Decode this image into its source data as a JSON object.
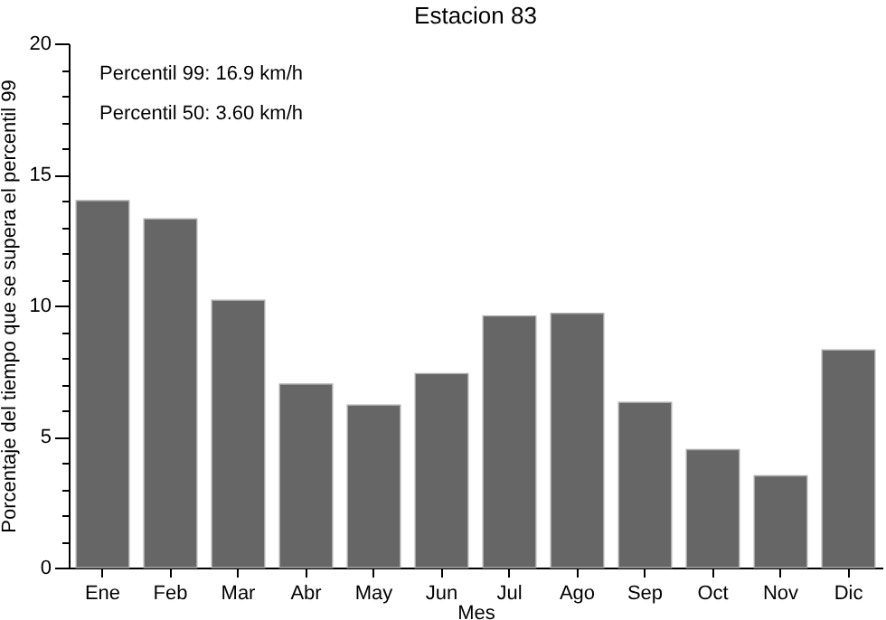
{
  "chart_data": {
    "type": "bar",
    "title": "Estacion 83",
    "xlabel": "Mes",
    "ylabel": "Porcentaje del tiempo que se supera el percentil 99",
    "categories": [
      "Ene",
      "Feb",
      "Mar",
      "Abr",
      "May",
      "Jun",
      "Jul",
      "Ago",
      "Sep",
      "Oct",
      "Nov",
      "Dic"
    ],
    "values": [
      14.0,
      13.3,
      10.2,
      7.0,
      6.2,
      7.4,
      9.6,
      9.7,
      6.3,
      4.5,
      3.5,
      8.3
    ],
    "color": "#666666",
    "ylim": [
      0,
      20
    ],
    "yticks": [
      0,
      {
        "value": 1,
        "label": null
      },
      {
        "value": 2,
        "label": null
      },
      {
        "value": 3,
        "label": null
      },
      {
        "value": 4,
        "label": null
      },
      5,
      {
        "value": 6,
        "label": null
      },
      {
        "value": 7,
        "label": null
      },
      {
        "value": 8,
        "label": null
      },
      {
        "value": 9,
        "label": null
      },
      10,
      {
        "value": 11,
        "label": null
      },
      {
        "value": 12,
        "label": null
      },
      {
        "value": 13,
        "label": null
      },
      {
        "value": 14,
        "label": null
      },
      15,
      {
        "value": 16,
        "label": null
      },
      {
        "value": 17,
        "label": null
      },
      {
        "value": 18,
        "label": null
      },
      {
        "value": 19,
        "label": null
      },
      20
    ],
    "annotations": [
      "Percentil 99: 16.9 km/h",
      "Percentil 50: 3.60 km/h"
    ],
    "grid": false
  }
}
